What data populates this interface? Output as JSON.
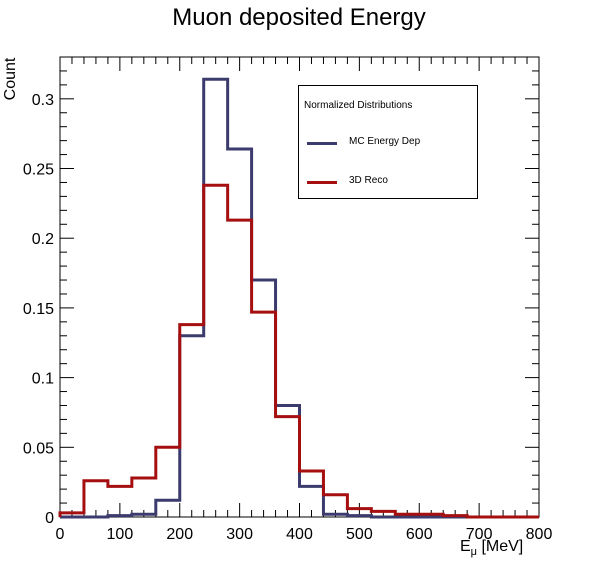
{
  "chart_data": {
    "type": "histogram",
    "title": "Muon deposited Energy",
    "ylabel": "Count",
    "xlabel_main": "E",
    "xlabel_sub": "μ",
    "xlabel_unit": " [MeV]",
    "xlim": [
      0,
      800
    ],
    "ylim": [
      0,
      0.33
    ],
    "bin_edges": [
      0,
      40,
      80,
      120,
      160,
      200,
      240,
      280,
      320,
      360,
      400,
      440,
      480,
      520,
      560,
      600,
      640,
      680,
      720,
      760,
      800
    ],
    "xticks": [
      0,
      100,
      200,
      300,
      400,
      500,
      600,
      700,
      800
    ],
    "yticks": [
      0,
      0.05,
      0.1,
      0.15,
      0.2,
      0.25,
      0.3
    ],
    "ytick_labels": [
      "0",
      "0.05",
      "0.1",
      "0.15",
      "0.2",
      "0.25",
      "0.3"
    ],
    "grid": false,
    "legend": {
      "title": "Normalized Distributions",
      "position": "top-right"
    },
    "series": [
      {
        "name": "MC Energy Dep",
        "color": "#3b3b6e",
        "values": [
          0,
          0,
          0.001,
          0.002,
          0.012,
          0.13,
          0.314,
          0.264,
          0.17,
          0.08,
          0.022,
          0.002,
          0.001,
          0,
          0,
          0,
          0,
          0,
          0,
          0
        ]
      },
      {
        "name": "3D Reco",
        "color": "#a50f0f",
        "values": [
          0.003,
          0.026,
          0.022,
          0.028,
          0.05,
          0.138,
          0.238,
          0.213,
          0.147,
          0.072,
          0.033,
          0.016,
          0.006,
          0.004,
          0.002,
          0.002,
          0.001,
          0,
          0,
          0
        ]
      }
    ]
  }
}
